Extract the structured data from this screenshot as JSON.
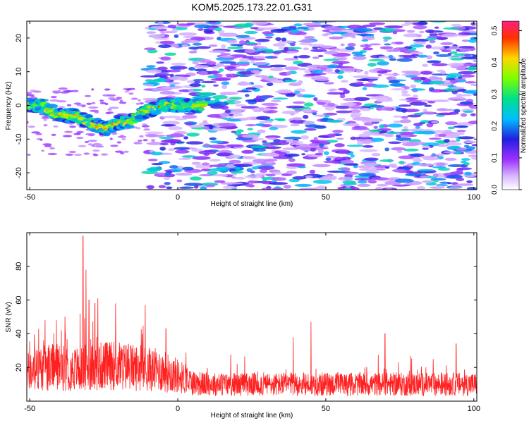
{
  "figure_title": "KOM5.2025.173.22.01.G31",
  "chart_data": [
    {
      "type": "heatmap",
      "xlabel": "Height of straight line (km)",
      "ylabel": "Frequency (Hz)",
      "xlim": [
        -51,
        101
      ],
      "ylim": [
        -25,
        25
      ],
      "x_ticks": [
        -50,
        0,
        50,
        100
      ],
      "y_ticks": [
        -20,
        -10,
        0,
        10,
        20
      ],
      "grid": false,
      "colorbar": {
        "label": "Normalized spectral amplitude",
        "range": [
          0,
          0.53
        ],
        "ticks": [
          0.0,
          0.1,
          0.2,
          0.3,
          0.4,
          0.5
        ],
        "colormap": [
          "#ffffff",
          "#d8b8ff",
          "#9b30ff",
          "#2020e0",
          "#00bfff",
          "#00e08a",
          "#7cff00",
          "#ffd700",
          "#ff3000",
          "#ff2080"
        ]
      },
      "ridge": {
        "description_free_points": [
          [
            -51,
            0
          ],
          [
            -46,
            0
          ],
          [
            -40,
            -3
          ],
          [
            -34,
            -3
          ],
          [
            -30,
            -5
          ],
          [
            -27,
            -6
          ],
          [
            -24,
            -7
          ],
          [
            -20,
            -5
          ],
          [
            -16,
            -5
          ],
          [
            -12,
            -2
          ],
          [
            -8,
            -1
          ],
          [
            -4,
            0
          ],
          [
            0,
            0
          ],
          [
            4,
            0
          ],
          [
            8,
            0
          ]
        ],
        "peak_value": 0.5
      },
      "noise_region_x": [
        -10,
        101
      ],
      "noise_level": 0.15
    },
    {
      "type": "line",
      "xlabel": "Height of straight line (km)",
      "ylabel": "SNR (v/v)",
      "xlim": [
        -51,
        101
      ],
      "ylim": [
        0,
        100
      ],
      "x_ticks": [
        -50,
        0,
        50,
        100
      ],
      "y_ticks": [
        20,
        40,
        60,
        80
      ],
      "grid": false,
      "color": "#ff2020",
      "series": [
        {
          "trend": [
            [
              -51,
              17
            ],
            [
              -45,
              20
            ],
            [
              -40,
              20
            ],
            [
              -35,
              19
            ],
            [
              -30,
              20
            ],
            [
              -25,
              21
            ],
            [
              -20,
              21
            ],
            [
              -15,
              20
            ],
            [
              -10,
              19
            ],
            [
              -5,
              18
            ],
            [
              0,
              15
            ],
            [
              5,
              11
            ],
            [
              10,
              10
            ],
            [
              20,
              10
            ],
            [
              40,
              10
            ],
            [
              60,
              10
            ],
            [
              80,
              10
            ],
            [
              101,
              10
            ]
          ],
          "spikes": [
            [
              -32,
              98
            ],
            [
              -31,
              78
            ],
            [
              -30,
              60
            ],
            [
              -28,
              58
            ],
            [
              -27,
              61
            ],
            [
              -21,
              58
            ],
            [
              -11,
              57
            ],
            [
              -41,
              48
            ],
            [
              -33,
              52
            ],
            [
              45,
              47
            ],
            [
              -4,
              43
            ],
            [
              -38,
              41
            ],
            [
              -47,
              43
            ],
            [
              39,
              38
            ],
            [
              70,
              40
            ],
            [
              94,
              34
            ]
          ]
        }
      ]
    }
  ]
}
